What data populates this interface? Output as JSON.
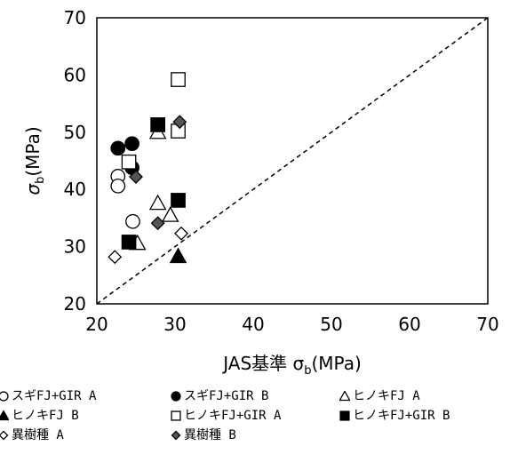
{
  "chart_data": {
    "type": "scatter",
    "title": "",
    "xlabel": "JAS基準 σ",
    "xlabel_sub": "b",
    "xlabel_unit": "(MPa)",
    "ylabel": "σ",
    "ylabel_sub": "b",
    "ylabel_unit": "(MPa)",
    "xlim": [
      20,
      70
    ],
    "ylim": [
      20,
      70
    ],
    "xticks": [
      "20",
      "30",
      "40",
      "50",
      "60",
      "70"
    ],
    "yticks": [
      "20",
      "30",
      "40",
      "50",
      "60",
      "70"
    ],
    "grid": false,
    "legend_position": "bottom",
    "reference_line": {
      "style": "dashed",
      "from": [
        20,
        20
      ],
      "to": [
        70,
        70
      ]
    },
    "series": [
      {
        "name": "スギFJ+GIR A",
        "marker": "circle",
        "filled": false,
        "points": [
          [
            22.7,
            42.3
          ],
          [
            22.7,
            40.6
          ],
          [
            24.6,
            34.4
          ]
        ]
      },
      {
        "name": "スギFJ+GIR B",
        "marker": "circle",
        "filled": true,
        "points": [
          [
            22.7,
            47.2
          ],
          [
            24.5,
            48.0
          ],
          [
            24.5,
            43.8
          ]
        ]
      },
      {
        "name": "ヒノキFJ A",
        "marker": "triangle",
        "filled": false,
        "points": [
          [
            27.8,
            50.0
          ],
          [
            27.8,
            37.6
          ],
          [
            29.4,
            35.5
          ],
          [
            25.2,
            30.6
          ]
        ]
      },
      {
        "name": "ヒノキFJ B",
        "marker": "triangle",
        "filled": true,
        "points": [
          [
            30.4,
            28.3
          ]
        ]
      },
      {
        "name": "ヒノキFJ+GIR A",
        "marker": "square",
        "filled": false,
        "points": [
          [
            30.4,
            59.2
          ],
          [
            30.4,
            50.2
          ],
          [
            24.1,
            44.8
          ]
        ]
      },
      {
        "name": "ヒノキFJ+GIR B",
        "marker": "square",
        "filled": true,
        "points": [
          [
            27.8,
            51.3
          ],
          [
            30.4,
            38.1
          ],
          [
            24.1,
            30.8
          ]
        ]
      },
      {
        "name": "異樹種 A",
        "marker": "diamond",
        "filled": false,
        "points": [
          [
            22.3,
            28.2
          ],
          [
            30.8,
            32.3
          ]
        ]
      },
      {
        "name": "異樹種 B",
        "marker": "diamond",
        "filled": "gray",
        "points": [
          [
            30.6,
            51.8
          ],
          [
            25.0,
            42.2
          ],
          [
            27.8,
            34.1
          ]
        ]
      }
    ]
  }
}
